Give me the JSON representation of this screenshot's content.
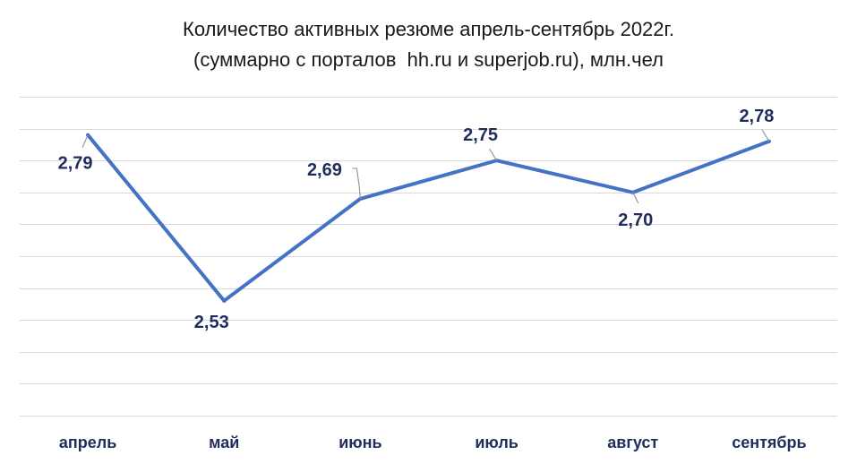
{
  "chart_data": {
    "type": "line",
    "title": "Количество активных резюме апрель-сентябрь 2022г.",
    "subtitle": "(суммарно с порталов  hh.ru и superjob.ru), млн.чел",
    "categories": [
      "апрель",
      "май",
      "июнь",
      "июль",
      "август",
      "сентябрь"
    ],
    "series": [
      {
        "values": [
          2.79,
          2.53,
          2.69,
          2.75,
          2.7,
          2.78
        ]
      }
    ],
    "data_labels": [
      "2,79",
      "2,53",
      "2,69",
      "2,75",
      "2,70",
      "2,78"
    ],
    "ylim": [
      2.35,
      2.85
    ],
    "grid": true,
    "legend": "none",
    "colors": {
      "line": "#4472c4",
      "labels": "#1f2d5c",
      "grid": "#d9d9d9"
    }
  }
}
